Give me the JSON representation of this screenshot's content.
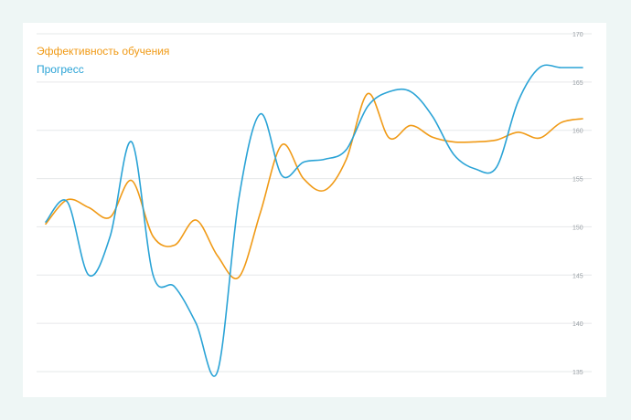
{
  "colors": {
    "background": "#eef6f5",
    "card": "#ffffff",
    "grid": "#e6e8ea",
    "tick_text": "#9aa0a6"
  },
  "chart_data": {
    "type": "line",
    "title": "",
    "xlabel": "",
    "ylabel": "",
    "ylim": [
      135,
      170
    ],
    "yticks": [
      170,
      165,
      160,
      155,
      150,
      145,
      140,
      135
    ],
    "y_axis_side": "right",
    "grid": "horizontal",
    "legend_position": "top-left",
    "x": [
      0,
      1,
      2,
      3,
      4,
      5,
      6,
      7,
      8,
      9,
      10,
      11,
      12,
      13,
      14,
      15,
      16,
      17,
      18,
      19,
      20,
      21,
      22,
      23,
      24,
      25
    ],
    "series": [
      {
        "name": "Эффективность обучения",
        "color": "#f09a16",
        "values": [
          150.3,
          152.8,
          152.0,
          151.0,
          154.8,
          149.0,
          148.1,
          150.7,
          147.0,
          144.8,
          151.5,
          158.5,
          155.0,
          153.8,
          157.0,
          163.8,
          159.2,
          160.5,
          159.3,
          158.8,
          158.8,
          159.0,
          159.8,
          159.2,
          160.8,
          161.2
        ]
      },
      {
        "name": "Прогресс",
        "color": "#2aa3d6",
        "values": [
          150.5,
          152.6,
          145.0,
          149.0,
          158.8,
          145.0,
          143.8,
          140.0,
          135.0,
          153.0,
          161.7,
          155.3,
          156.7,
          157.0,
          158.0,
          162.5,
          164.0,
          164.0,
          161.5,
          157.5,
          156.0,
          156.2,
          163.0,
          166.5,
          166.5,
          166.5
        ]
      }
    ]
  }
}
